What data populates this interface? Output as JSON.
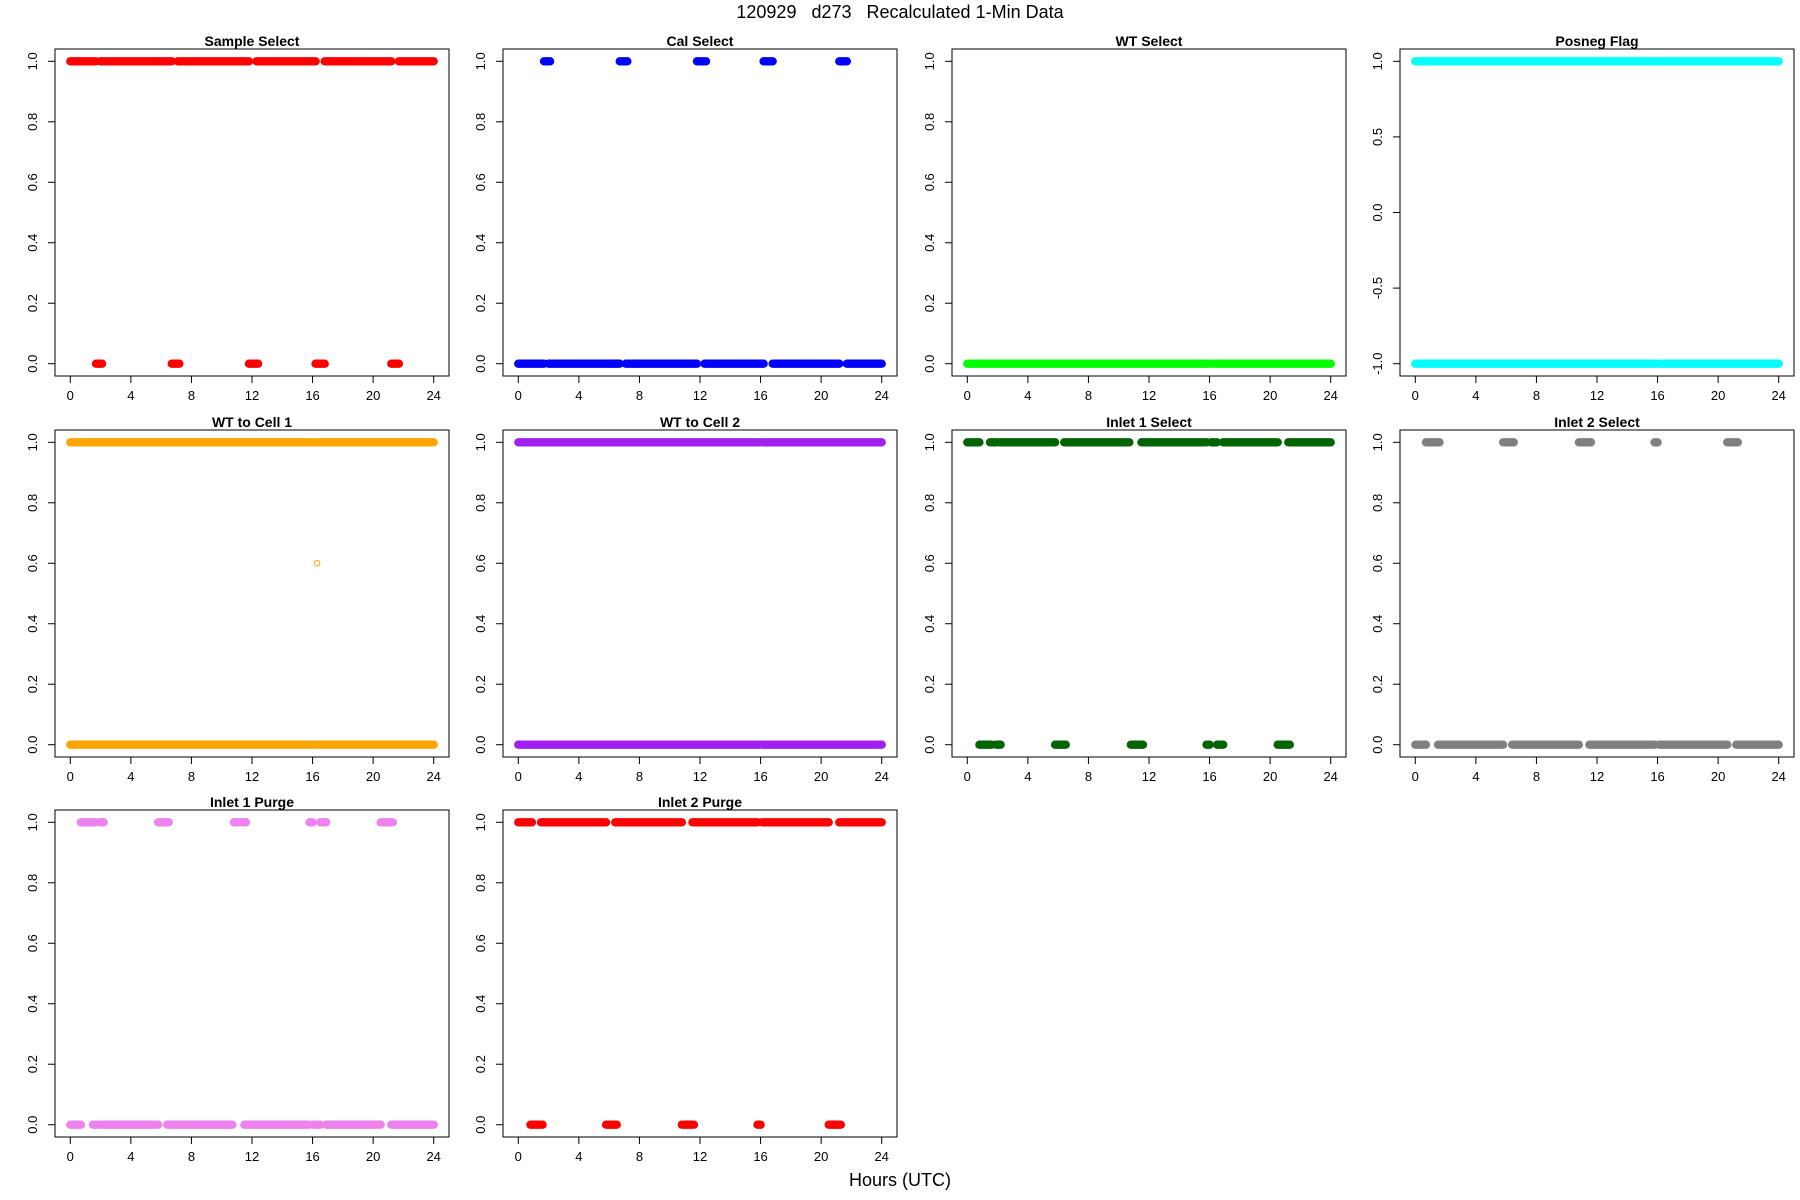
{
  "title": "120929   d273   Recalculated 1-Min Data",
  "xlabel": "Hours (UTC)",
  "chart_data": [
    {
      "type": "scatter",
      "title": "Sample Select",
      "color": "#ff0000",
      "xlim": [
        0,
        24
      ],
      "ylim": [
        0,
        1
      ],
      "xticks": [
        "0",
        "4",
        "8",
        "12",
        "16",
        "20",
        "24"
      ],
      "yticks": [
        "0.0",
        "0.2",
        "0.4",
        "0.6",
        "0.8",
        "1.0"
      ],
      "series": [
        {
          "y": 1,
          "segments": [
            [
              0,
              1.7
            ],
            [
              2.0,
              6.7
            ],
            [
              7.1,
              11.8
            ],
            [
              12.3,
              16.2
            ],
            [
              16.8,
              21.2
            ],
            [
              21.7,
              24
            ]
          ]
        },
        {
          "y": 0,
          "segments": [
            [
              1.7,
              2.1
            ],
            [
              6.7,
              7.2
            ],
            [
              11.8,
              12.4
            ],
            [
              16.2,
              16.8
            ],
            [
              21.2,
              21.7
            ]
          ]
        }
      ]
    },
    {
      "type": "scatter",
      "title": "Cal Select",
      "color": "#0000ff",
      "xlim": [
        0,
        24
      ],
      "ylim": [
        0,
        1
      ],
      "xticks": [
        "0",
        "4",
        "8",
        "12",
        "16",
        "20",
        "24"
      ],
      "yticks": [
        "0.0",
        "0.2",
        "0.4",
        "0.6",
        "0.8",
        "1.0"
      ],
      "series": [
        {
          "y": 1,
          "segments": [
            [
              1.7,
              2.1
            ],
            [
              6.7,
              7.2
            ],
            [
              11.8,
              12.4
            ],
            [
              16.2,
              16.8
            ],
            [
              21.2,
              21.7
            ]
          ]
        },
        {
          "y": 0,
          "segments": [
            [
              0,
              1.7
            ],
            [
              2.0,
              6.7
            ],
            [
              7.1,
              11.8
            ],
            [
              12.3,
              16.2
            ],
            [
              16.8,
              21.2
            ],
            [
              21.7,
              24
            ]
          ]
        }
      ]
    },
    {
      "type": "scatter",
      "title": "WT Select",
      "color": "#00ff00",
      "xlim": [
        0,
        24
      ],
      "ylim": [
        0,
        1
      ],
      "xticks": [
        "0",
        "4",
        "8",
        "12",
        "16",
        "20",
        "24"
      ],
      "yticks": [
        "0.0",
        "0.2",
        "0.4",
        "0.6",
        "0.8",
        "1.0"
      ],
      "series": [
        {
          "y": 0,
          "segments": [
            [
              0,
              15.9
            ],
            [
              16.1,
              24
            ]
          ]
        }
      ]
    },
    {
      "type": "scatter",
      "title": "Posneg Flag",
      "color": "#00ffff",
      "xlim": [
        0,
        24
      ],
      "ylim": [
        -1,
        1
      ],
      "xticks": [
        "0",
        "4",
        "8",
        "12",
        "16",
        "20",
        "24"
      ],
      "yticks": [
        "-1.0",
        "-0.5",
        "0.0",
        "0.5",
        "1.0"
      ],
      "series": [
        {
          "y": 1,
          "segments": [
            [
              0,
              15.9
            ],
            [
              16.1,
              24
            ]
          ]
        },
        {
          "y": -1,
          "segments": [
            [
              0,
              15.9
            ],
            [
              16.1,
              24
            ]
          ]
        }
      ]
    },
    {
      "type": "scatter",
      "title": "WT to Cell 1",
      "color": "#ffa500",
      "xlim": [
        0,
        24
      ],
      "ylim": [
        0,
        1
      ],
      "xticks": [
        "0",
        "4",
        "8",
        "12",
        "16",
        "20",
        "24"
      ],
      "yticks": [
        "0.0",
        "0.2",
        "0.4",
        "0.6",
        "0.8",
        "1.0"
      ],
      "series": [
        {
          "y": 1,
          "segments": [
            [
              0,
              16.0
            ],
            [
              16.2,
              24
            ]
          ]
        },
        {
          "y": 0,
          "segments": [
            [
              0,
              16.0
            ],
            [
              16.2,
              24
            ]
          ]
        },
        {
          "points": [
            [
              16.3,
              0.6
            ]
          ]
        }
      ]
    },
    {
      "type": "scatter",
      "title": "WT to Cell 2",
      "color": "#a020f0",
      "xlim": [
        0,
        24
      ],
      "ylim": [
        0,
        1
      ],
      "xticks": [
        "0",
        "4",
        "8",
        "12",
        "16",
        "20",
        "24"
      ],
      "yticks": [
        "0.0",
        "0.2",
        "0.4",
        "0.6",
        "0.8",
        "1.0"
      ],
      "series": [
        {
          "y": 1,
          "segments": [
            [
              0,
              15.9
            ],
            [
              16.1,
              24
            ]
          ]
        },
        {
          "y": 0,
          "segments": [
            [
              0,
              15.9
            ],
            [
              16.1,
              24
            ]
          ]
        }
      ]
    },
    {
      "type": "scatter",
      "title": "Inlet 1 Select",
      "color": "#006400",
      "xlim": [
        0,
        24
      ],
      "ylim": [
        0,
        1
      ],
      "xticks": [
        "0",
        "4",
        "8",
        "12",
        "16",
        "20",
        "24"
      ],
      "yticks": [
        "0.0",
        "0.2",
        "0.4",
        "0.6",
        "0.8",
        "1.0"
      ],
      "series": [
        {
          "y": 1,
          "segments": [
            [
              0,
              0.8
            ],
            [
              1.5,
              1.9
            ],
            [
              2.1,
              5.8
            ],
            [
              6.4,
              10.7
            ],
            [
              11.5,
              15.8
            ],
            [
              16.1,
              16.5
            ],
            [
              16.9,
              20.5
            ],
            [
              21.2,
              24
            ]
          ]
        },
        {
          "y": 0,
          "segments": [
            [
              0.8,
              1.6
            ],
            [
              1.9,
              2.2
            ],
            [
              5.8,
              6.5
            ],
            [
              10.8,
              11.6
            ],
            [
              15.8,
              16.0
            ],
            [
              16.5,
              16.9
            ],
            [
              20.5,
              21.3
            ]
          ]
        }
      ]
    },
    {
      "type": "scatter",
      "title": "Inlet 2 Select",
      "color": "#808080",
      "xlim": [
        0,
        24
      ],
      "ylim": [
        0,
        1
      ],
      "xticks": [
        "0",
        "4",
        "8",
        "12",
        "16",
        "20",
        "24"
      ],
      "yticks": [
        "0.0",
        "0.2",
        "0.4",
        "0.6",
        "0.8",
        "1.0"
      ],
      "series": [
        {
          "y": 1,
          "segments": [
            [
              0.7,
              1.6
            ],
            [
              5.8,
              6.5
            ],
            [
              10.8,
              11.6
            ],
            [
              15.8,
              16.0
            ],
            [
              20.6,
              21.3
            ]
          ]
        },
        {
          "y": 0,
          "segments": [
            [
              0,
              0.7
            ],
            [
              1.5,
              5.8
            ],
            [
              6.4,
              10.8
            ],
            [
              11.5,
              15.8
            ],
            [
              16.1,
              20.6
            ],
            [
              21.2,
              24
            ]
          ]
        }
      ]
    },
    {
      "type": "scatter",
      "title": "Inlet 1 Purge",
      "color": "#ee82ee",
      "xlim": [
        0,
        24
      ],
      "ylim": [
        0,
        1
      ],
      "xticks": [
        "0",
        "4",
        "8",
        "12",
        "16",
        "20",
        "24"
      ],
      "yticks": [
        "0.0",
        "0.2",
        "0.4",
        "0.6",
        "0.8",
        "1.0"
      ],
      "series": [
        {
          "y": 1,
          "segments": [
            [
              0.7,
              1.6
            ],
            [
              1.9,
              2.2
            ],
            [
              5.8,
              6.5
            ],
            [
              10.8,
              11.6
            ],
            [
              15.8,
              16.0
            ],
            [
              16.5,
              16.9
            ],
            [
              20.5,
              21.3
            ]
          ]
        },
        {
          "y": 0,
          "segments": [
            [
              0,
              0.7
            ],
            [
              1.5,
              1.9
            ],
            [
              2.1,
              5.8
            ],
            [
              6.4,
              10.7
            ],
            [
              11.5,
              15.8
            ],
            [
              16.1,
              16.5
            ],
            [
              16.9,
              20.5
            ],
            [
              21.2,
              24
            ]
          ]
        }
      ]
    },
    {
      "type": "scatter",
      "title": "Inlet 2 Purge",
      "color": "#ff0000",
      "xlim": [
        0,
        24
      ],
      "ylim": [
        0,
        1
      ],
      "xticks": [
        "0",
        "4",
        "8",
        "12",
        "16",
        "20",
        "24"
      ],
      "yticks": [
        "0.0",
        "0.2",
        "0.4",
        "0.6",
        "0.8",
        "1.0"
      ],
      "series": [
        {
          "y": 1,
          "segments": [
            [
              0,
              0.9
            ],
            [
              1.5,
              5.8
            ],
            [
              6.4,
              10.8
            ],
            [
              11.5,
              15.8
            ],
            [
              16.1,
              20.5
            ],
            [
              21.2,
              24
            ]
          ]
        },
        {
          "y": 0,
          "segments": [
            [
              0.8,
              1.6
            ],
            [
              5.8,
              6.5
            ],
            [
              10.8,
              11.6
            ],
            [
              15.8,
              16.0
            ],
            [
              20.5,
              21.3
            ]
          ]
        }
      ]
    }
  ]
}
